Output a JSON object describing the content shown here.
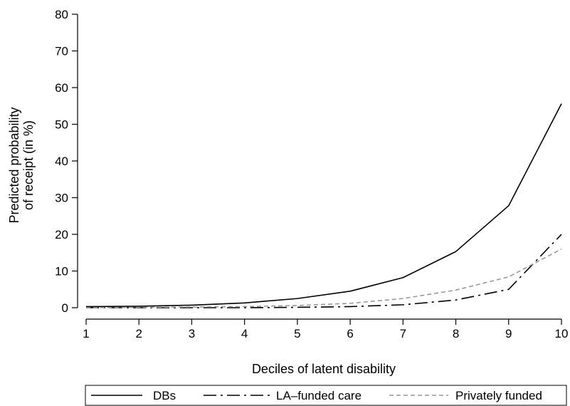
{
  "chart_data": {
    "type": "line",
    "title": "",
    "xlabel": "Deciles of latent disability",
    "ylabel_lines": [
      "Predicted probability",
      "of receipt (in %)"
    ],
    "x": [
      1,
      2,
      3,
      4,
      5,
      6,
      7,
      8,
      9,
      10
    ],
    "xlim": [
      1,
      10
    ],
    "ylim": [
      0,
      80
    ],
    "yticks": [
      0,
      10,
      20,
      30,
      40,
      50,
      60,
      70,
      80
    ],
    "grid": false,
    "legend_position": "bottom",
    "series": [
      {
        "name": "DBs",
        "style": "solid",
        "color": "#000000",
        "values": [
          0.3,
          0.4,
          0.7,
          1.3,
          2.5,
          4.5,
          8.2,
          15.3,
          27.8,
          55.6
        ]
      },
      {
        "name": "LA–funded care",
        "style": "dashdot",
        "color": "#000000",
        "values": [
          0.0,
          0.0,
          0.0,
          0.0,
          0.1,
          0.3,
          0.8,
          2.1,
          5.0,
          20.0
        ]
      },
      {
        "name": "Privately funded",
        "style": "dashed",
        "color": "#999999",
        "values": [
          0.0,
          0.1,
          0.2,
          0.3,
          0.6,
          1.2,
          2.5,
          4.8,
          8.4,
          16.0
        ]
      }
    ]
  }
}
